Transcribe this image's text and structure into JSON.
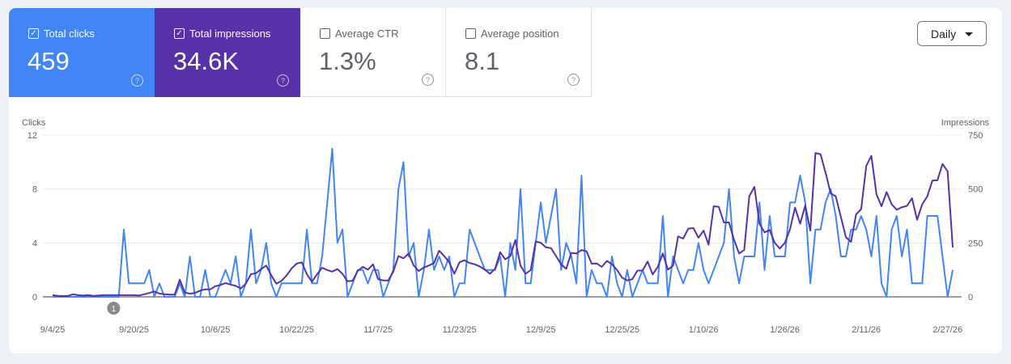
{
  "metrics": [
    {
      "label": "Total clicks",
      "value": "459",
      "checked": true,
      "color": "#4285f4"
    },
    {
      "label": "Total impressions",
      "value": "34.6K",
      "checked": true,
      "color": "#5631a8"
    },
    {
      "label": "Average CTR",
      "value": "1.3%",
      "checked": false
    },
    {
      "label": "Average position",
      "value": "8.1",
      "checked": false
    }
  ],
  "help_glyph": "?",
  "check_glyph": "✓",
  "granularity": {
    "selected": "Daily"
  },
  "chart_data": {
    "type": "line",
    "x_start": "9/4/25",
    "x_interval": "daily",
    "x_tick_labels": [
      "9/4/25",
      "9/20/25",
      "10/6/25",
      "10/22/25",
      "11/7/25",
      "11/23/25",
      "12/9/25",
      "12/25/25",
      "1/10/26",
      "1/26/26",
      "2/11/26",
      "2/27/26"
    ],
    "y_left": {
      "label": "Clicks",
      "range": [
        0,
        12
      ],
      "ticks": [
        "0",
        "4",
        "8",
        "12"
      ]
    },
    "y_right": {
      "label": "Impressions",
      "range": [
        0,
        750
      ],
      "ticks": [
        "0",
        "250",
        "500",
        "750"
      ]
    },
    "grid": true,
    "annotations": [
      {
        "date": "9/16/25",
        "label": "1"
      }
    ],
    "series": [
      {
        "name": "Clicks",
        "axis": "left",
        "color": "#4285f4",
        "values": [
          0,
          0,
          0,
          0,
          0,
          0,
          0,
          0,
          0,
          0,
          0,
          0,
          0,
          0,
          5,
          1,
          1,
          1,
          1,
          2,
          0,
          1,
          0,
          0,
          0,
          1,
          0,
          3,
          0,
          0,
          2,
          0,
          0,
          1,
          2,
          1,
          3,
          0,
          1,
          5,
          1,
          2,
          4,
          1,
          0,
          1,
          1,
          1,
          1,
          1,
          5,
          1,
          1,
          3,
          7,
          11,
          4,
          5,
          0,
          1,
          2,
          2,
          1,
          2,
          2,
          0,
          1,
          2,
          8,
          10,
          3,
          4,
          0,
          2,
          5,
          2,
          3,
          2,
          3,
          0,
          1,
          1,
          5,
          4,
          3,
          2,
          2,
          2,
          3,
          0,
          4,
          2,
          8,
          1,
          1,
          4,
          7,
          4,
          6,
          8,
          2,
          4,
          3,
          1,
          9,
          0,
          2,
          1,
          1,
          0,
          3,
          1,
          0,
          2,
          0,
          1,
          2,
          1,
          1,
          1,
          6,
          0,
          3,
          2,
          1,
          2,
          2,
          4,
          2,
          1,
          2,
          3,
          4,
          8,
          3,
          1,
          3,
          3,
          3,
          7,
          2,
          6,
          3,
          3,
          3,
          7,
          7,
          9,
          7,
          1,
          5,
          5,
          7,
          8,
          6,
          3,
          3,
          5,
          5,
          6,
          5,
          3,
          6,
          1,
          0,
          5,
          6,
          3,
          5,
          1,
          1,
          1,
          6,
          6,
          6,
          3,
          0,
          2
        ]
      },
      {
        "name": "Impressions",
        "axis": "right",
        "color": "#5631a8",
        "values": [
          8,
          5,
          4,
          4,
          12,
          8,
          6,
          8,
          5,
          6,
          8,
          8,
          8,
          8,
          8,
          8,
          8,
          6,
          12,
          18,
          25,
          15,
          12,
          10,
          10,
          80,
          20,
          15,
          18,
          29,
          35,
          35,
          49,
          55,
          64,
          57,
          51,
          39,
          61,
          105,
          110,
          129,
          145,
          100,
          61,
          74,
          99,
          132,
          154,
          160,
          105,
          70,
          105,
          135,
          124,
          117,
          129,
          107,
          72,
          75,
          120,
          139,
          126,
          151,
          82,
          76,
          76,
          117,
          189,
          179,
          201,
          145,
          120,
          136,
          145,
          157,
          214,
          189,
          160,
          107,
          160,
          170,
          157,
          151,
          141,
          126,
          107,
          130,
          207,
          174,
          189,
          264,
          145,
          107,
          124,
          257,
          251,
          230,
          226,
          189,
          151,
          130,
          204,
          201,
          217,
          211,
          154,
          155,
          139,
          167,
          151,
          124,
          89,
          76,
          82,
          122,
          122,
          164,
          104,
          139,
          201,
          126,
          145,
          280,
          270,
          316,
          319,
          274,
          307,
          242,
          420,
          417,
          345,
          345,
          264,
          201,
          217,
          467,
          510,
          339,
          299,
          310,
          251,
          224,
          251,
          314,
          414,
          339,
          424,
          307,
          667,
          661,
          576,
          480,
          466,
          370,
          276,
          255,
          382,
          407,
          607,
          654,
          476,
          420,
          486,
          429,
          404,
          416,
          422,
          457,
          357,
          429,
          466,
          539,
          541,
          616,
          582,
          229
        ]
      }
    ]
  }
}
